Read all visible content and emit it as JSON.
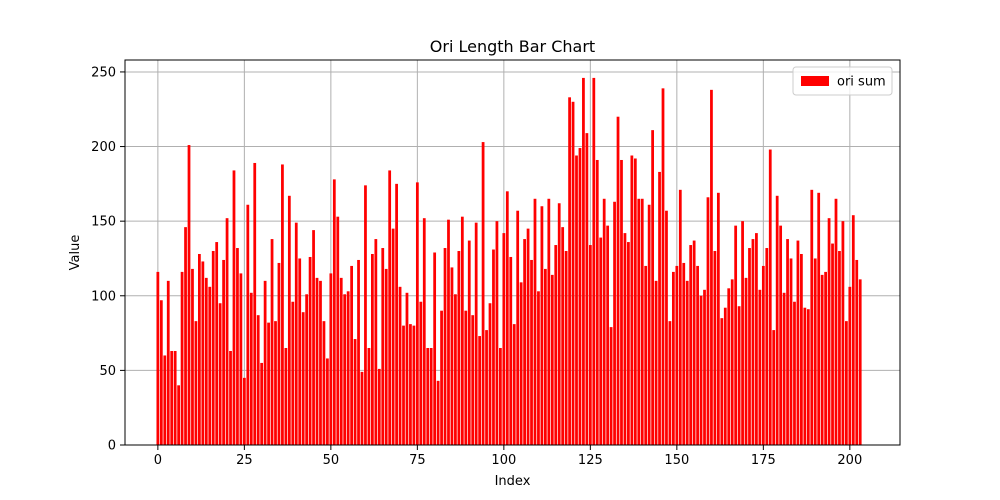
{
  "chart_data": {
    "type": "bar",
    "title": "Ori Length Bar Chart",
    "xlabel": "Index",
    "ylabel": "Value",
    "xlim": [
      -9.5,
      214.5
    ],
    "ylim": [
      0,
      258
    ],
    "xticks": [
      0,
      25,
      50,
      75,
      100,
      125,
      150,
      175,
      200
    ],
    "yticks": [
      0,
      50,
      100,
      150,
      200,
      250
    ],
    "grid": true,
    "legend_position": "top-right",
    "colors": {
      "bar": "#ff0000",
      "grid": "#b0b0b0"
    },
    "series": [
      {
        "name": "ori sum",
        "values": [
          116,
          97,
          60,
          110,
          63,
          63,
          40,
          116,
          146,
          201,
          118,
          83,
          128,
          123,
          112,
          106,
          130,
          136,
          95,
          124,
          152,
          63,
          184,
          132,
          115,
          45,
          161,
          102,
          189,
          87,
          55,
          110,
          82,
          138,
          83,
          122,
          188,
          65,
          167,
          96,
          149,
          125,
          89,
          101,
          126,
          144,
          112,
          110,
          83,
          58,
          115,
          178,
          153,
          112,
          101,
          103,
          120,
          71,
          124,
          49,
          174,
          65,
          128,
          138,
          51,
          132,
          118,
          184,
          145,
          175,
          106,
          80,
          102,
          81,
          80,
          176,
          96,
          152,
          65,
          65,
          129,
          43,
          90,
          132,
          151,
          119,
          101,
          130,
          153,
          90,
          137,
          87,
          149,
          73,
          203,
          77,
          95,
          131,
          150,
          65,
          142,
          170,
          126,
          81,
          157,
          109,
          138,
          145,
          124,
          165,
          103,
          160,
          118,
          165,
          114,
          134,
          162,
          146,
          130,
          233,
          230,
          194,
          199,
          246,
          209,
          134,
          246,
          191,
          139,
          165,
          147,
          79,
          163,
          220,
          191,
          142,
          136,
          194,
          192,
          165,
          165,
          120,
          161,
          211,
          110,
          183,
          239,
          157,
          83,
          116,
          120,
          171,
          122,
          110,
          134,
          137,
          120,
          100,
          104,
          166,
          238,
          130,
          169,
          85,
          92,
          105,
          111,
          147,
          93,
          150,
          112,
          132,
          138,
          142,
          104,
          120,
          132,
          198,
          77,
          167,
          147,
          102,
          138,
          125,
          96,
          137,
          128,
          92,
          91,
          171,
          125,
          169,
          114,
          116,
          152,
          135,
          165,
          130,
          150,
          83,
          106,
          154,
          124,
          111
        ]
      }
    ]
  }
}
